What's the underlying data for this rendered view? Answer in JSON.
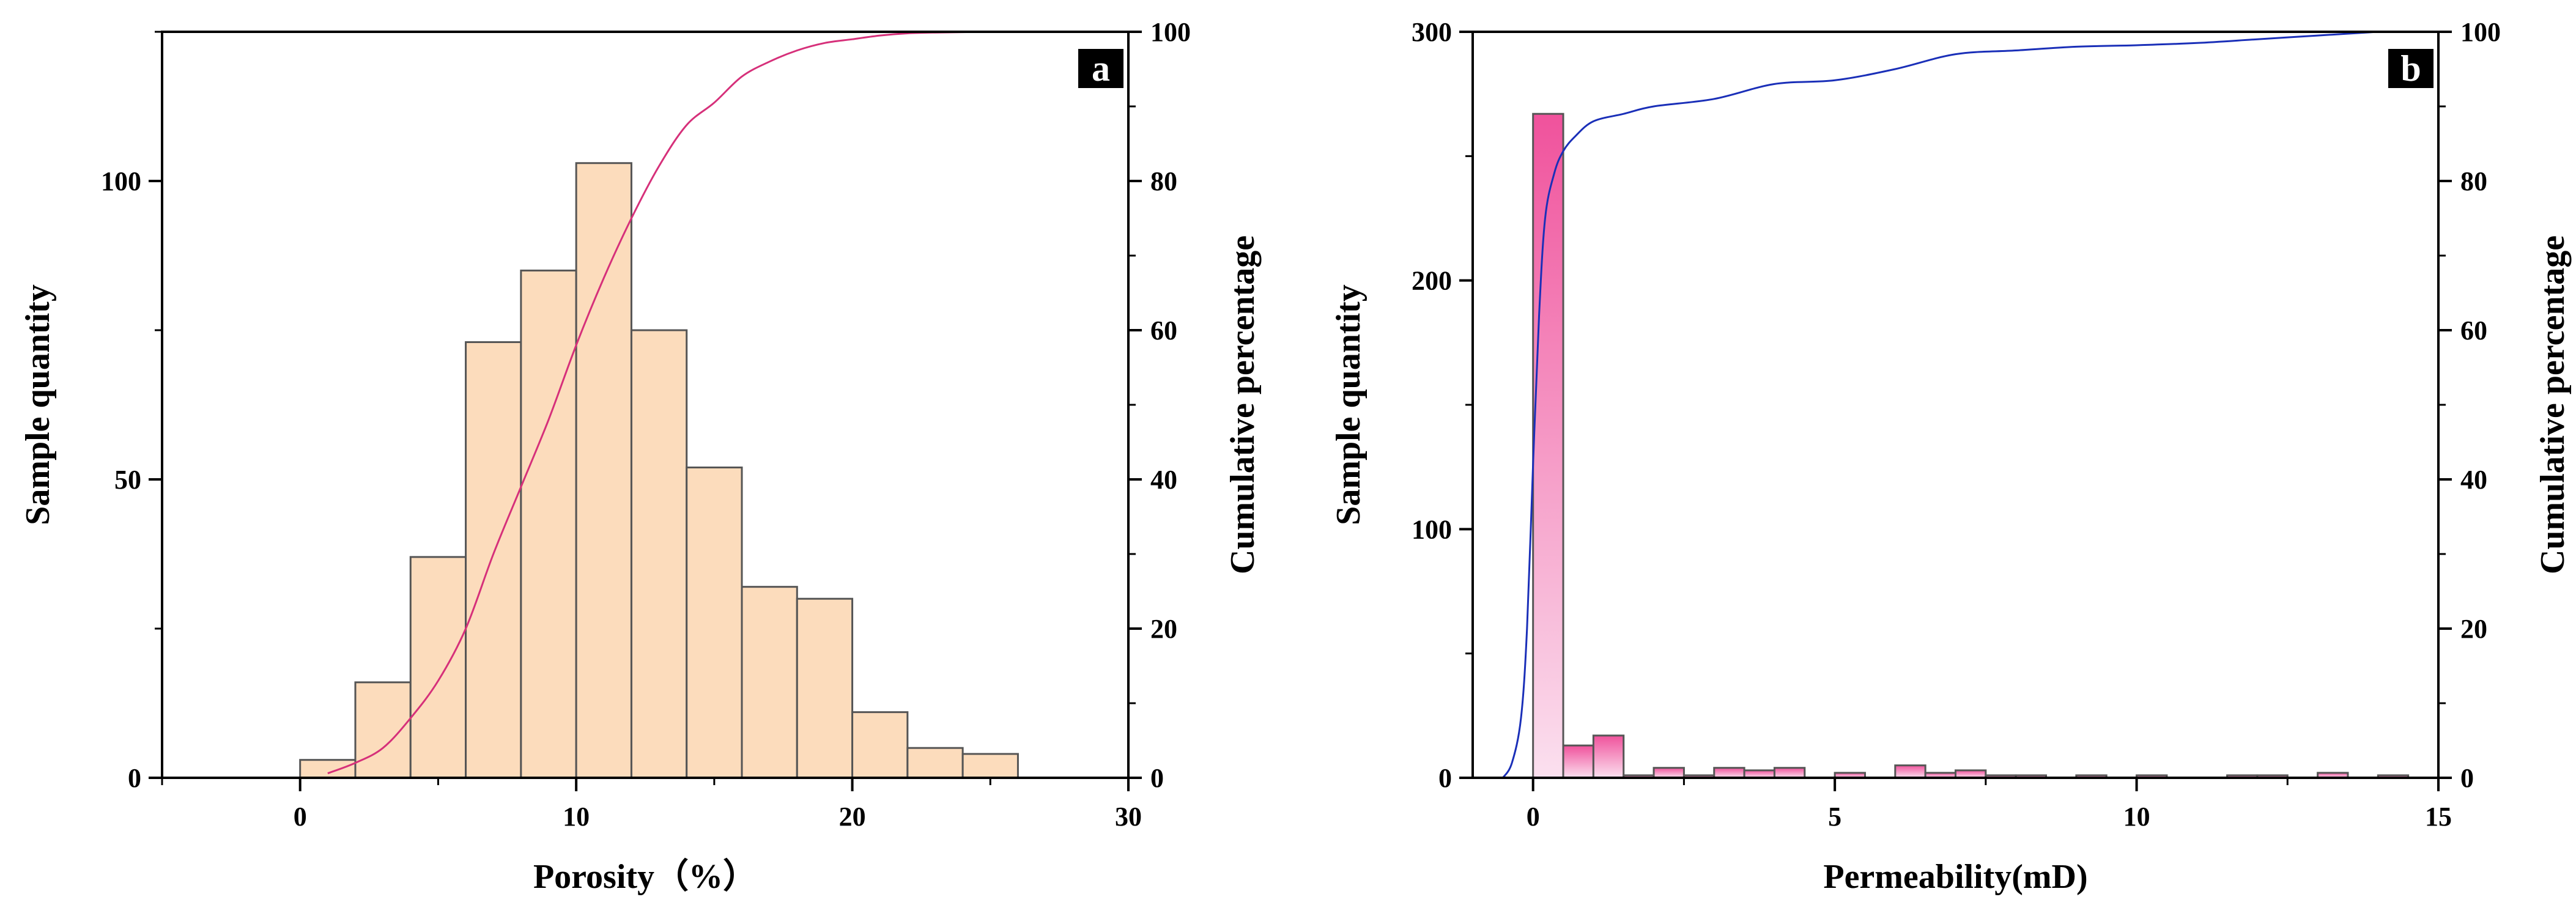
{
  "chart_data": [
    {
      "type": "bar",
      "panel": "a",
      "title": "",
      "xlabel": "Porosity（%）",
      "ylabel": "Sample quantity",
      "y2label": "Cumulative percentage",
      "xlim": [
        -5,
        30
      ],
      "ylim": [
        0,
        125
      ],
      "y2lim": [
        0,
        100
      ],
      "xticks": [
        0,
        10,
        20,
        30
      ],
      "yticks": [
        0,
        50,
        100
      ],
      "y2ticks": [
        0,
        20,
        40,
        60,
        80,
        100
      ],
      "bin_width": 2,
      "bin_starts": [
        0,
        2,
        4,
        6,
        8,
        10,
        12,
        14,
        16,
        18,
        20,
        22,
        24
      ],
      "values": [
        3,
        16,
        37,
        73,
        85,
        103,
        75,
        52,
        32,
        30,
        11,
        5,
        4
      ],
      "bar_color": "#fcdcbc",
      "bar_edge": "#555555",
      "cumulative": {
        "color": "#d6307a",
        "x": [
          1,
          2,
          3,
          4,
          5,
          6,
          7,
          8,
          9,
          10,
          11,
          12,
          13,
          14,
          15,
          16,
          17,
          18,
          19,
          20,
          21,
          22,
          23,
          25
        ],
        "y": [
          0.6,
          2,
          4,
          8,
          13,
          20,
          30,
          39,
          48,
          58,
          67,
          75,
          82,
          87.5,
          90.5,
          94,
          96,
          97.5,
          98.5,
          99,
          99.5,
          99.8,
          99.9,
          100
        ]
      }
    },
    {
      "type": "bar",
      "panel": "b",
      "title": "",
      "xlabel": "Permeability(mD)",
      "ylabel": "Sample quantity",
      "y2label": "Cumulative percentage",
      "xlim": [
        -1,
        15
      ],
      "ylim": [
        0,
        300
      ],
      "y2lim": [
        0,
        100
      ],
      "xticks": [
        0,
        5,
        10,
        15
      ],
      "yticks": [
        0,
        100,
        200,
        300
      ],
      "y2ticks": [
        0,
        20,
        40,
        60,
        80,
        100
      ],
      "bin_width": 0.5,
      "bin_starts": [
        0,
        0.5,
        1,
        1.5,
        2,
        2.5,
        3,
        3.5,
        4,
        4.5,
        5,
        5.5,
        6,
        6.5,
        7,
        7.5,
        8,
        8.5,
        9,
        9.5,
        10,
        10.5,
        11,
        11.5,
        12,
        12.5,
        13,
        13.5,
        14
      ],
      "values": [
        267,
        13,
        17,
        1,
        4,
        1,
        4,
        3,
        4,
        0,
        2,
        0,
        5,
        2,
        3,
        1,
        1,
        0,
        1,
        0,
        1,
        0,
        0,
        1,
        1,
        0,
        2,
        0,
        1
      ],
      "bar_color_top": "#f0529c",
      "bar_color_bottom": "#fbe0ef",
      "bar_edge": "#555555",
      "cumulative": {
        "color": "#1a2fb8",
        "x": [
          -0.5,
          -0.35,
          -0.2,
          -0.1,
          0,
          0.1,
          0.2,
          0.35,
          0.5,
          0.7,
          1,
          1.5,
          2,
          3,
          4,
          5,
          6,
          7,
          8,
          9,
          10,
          11,
          12,
          13,
          14
        ],
        "y": [
          0,
          2,
          8,
          20,
          42,
          62,
          75,
          81,
          84,
          86,
          88,
          89,
          90,
          91,
          93,
          93.5,
          95,
          97,
          97.5,
          98,
          98.2,
          98.5,
          99,
          99.5,
          100
        ]
      }
    }
  ]
}
